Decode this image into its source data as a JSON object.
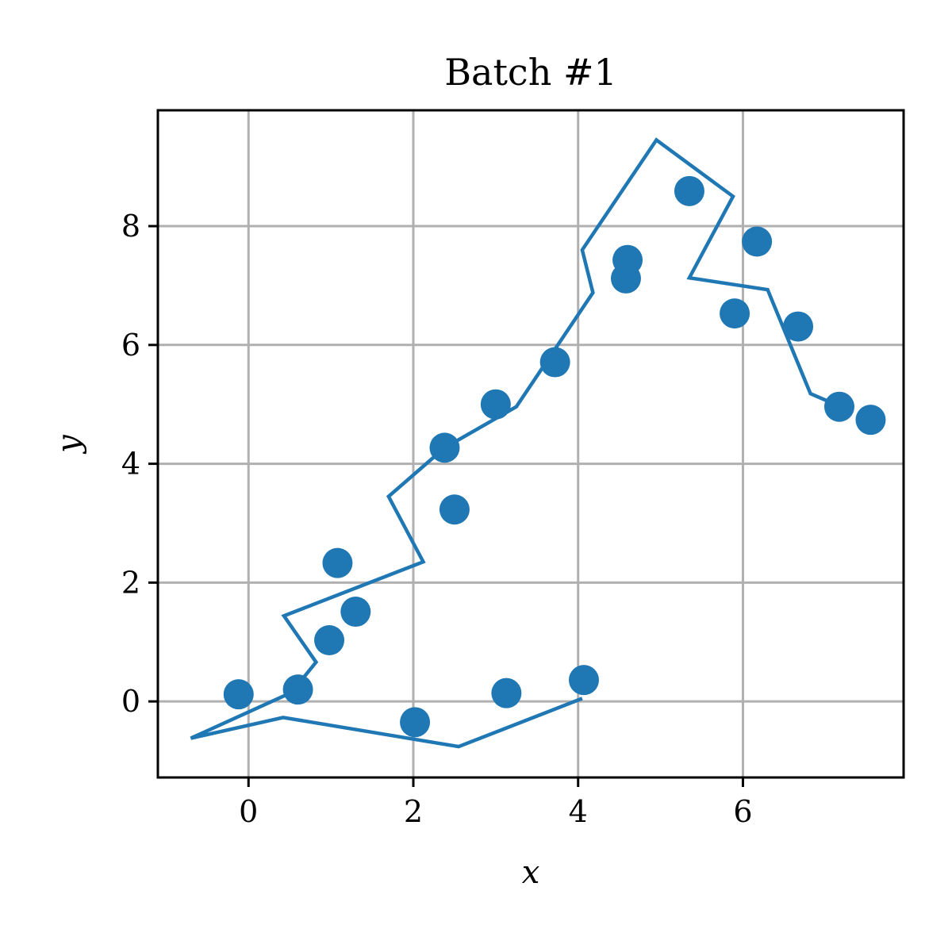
{
  "chart_data": {
    "type": "scatter",
    "title": "Batch #1",
    "xlabel": "x",
    "ylabel": "y",
    "xlim": [
      -1.1,
      7.95
    ],
    "ylim": [
      -1.28,
      9.95
    ],
    "xticks": [
      0,
      2,
      4,
      6
    ],
    "yticks": [
      0,
      2,
      4,
      6,
      8
    ],
    "grid": true,
    "color": "#1f77b4",
    "grid_color": "#b0b0b0",
    "series": [
      {
        "kind": "scatter",
        "points": [
          [
            -0.12,
            0.12
          ],
          [
            0.6,
            0.2
          ],
          [
            0.98,
            1.03
          ],
          [
            1.08,
            2.33
          ],
          [
            1.3,
            1.51
          ],
          [
            2.02,
            -0.35
          ],
          [
            2.38,
            4.27
          ],
          [
            2.5,
            3.23
          ],
          [
            3.0,
            5.0
          ],
          [
            3.13,
            0.14
          ],
          [
            3.72,
            5.71
          ],
          [
            4.07,
            0.36
          ],
          [
            4.58,
            7.12
          ],
          [
            4.6,
            7.43
          ],
          [
            5.35,
            8.59
          ],
          [
            5.9,
            6.53
          ],
          [
            6.17,
            7.74
          ],
          [
            6.67,
            6.31
          ],
          [
            7.17,
            4.96
          ],
          [
            7.55,
            4.74
          ]
        ]
      },
      {
        "kind": "line",
        "points": [
          [
            4.05,
            0.05
          ],
          [
            2.55,
            -0.76
          ],
          [
            0.42,
            -0.27
          ],
          [
            -0.7,
            -0.62
          ],
          [
            0.52,
            0.15
          ],
          [
            0.82,
            0.66
          ],
          [
            0.43,
            1.44
          ],
          [
            2.12,
            2.35
          ],
          [
            1.7,
            3.45
          ],
          [
            2.38,
            4.27
          ],
          [
            3.25,
            4.96
          ],
          [
            4.18,
            6.88
          ],
          [
            4.05,
            7.6
          ],
          [
            4.95,
            9.45
          ],
          [
            5.88,
            8.5
          ],
          [
            5.35,
            7.13
          ],
          [
            6.3,
            6.93
          ],
          [
            6.82,
            5.18
          ],
          [
            7.12,
            5.0
          ]
        ]
      }
    ]
  }
}
